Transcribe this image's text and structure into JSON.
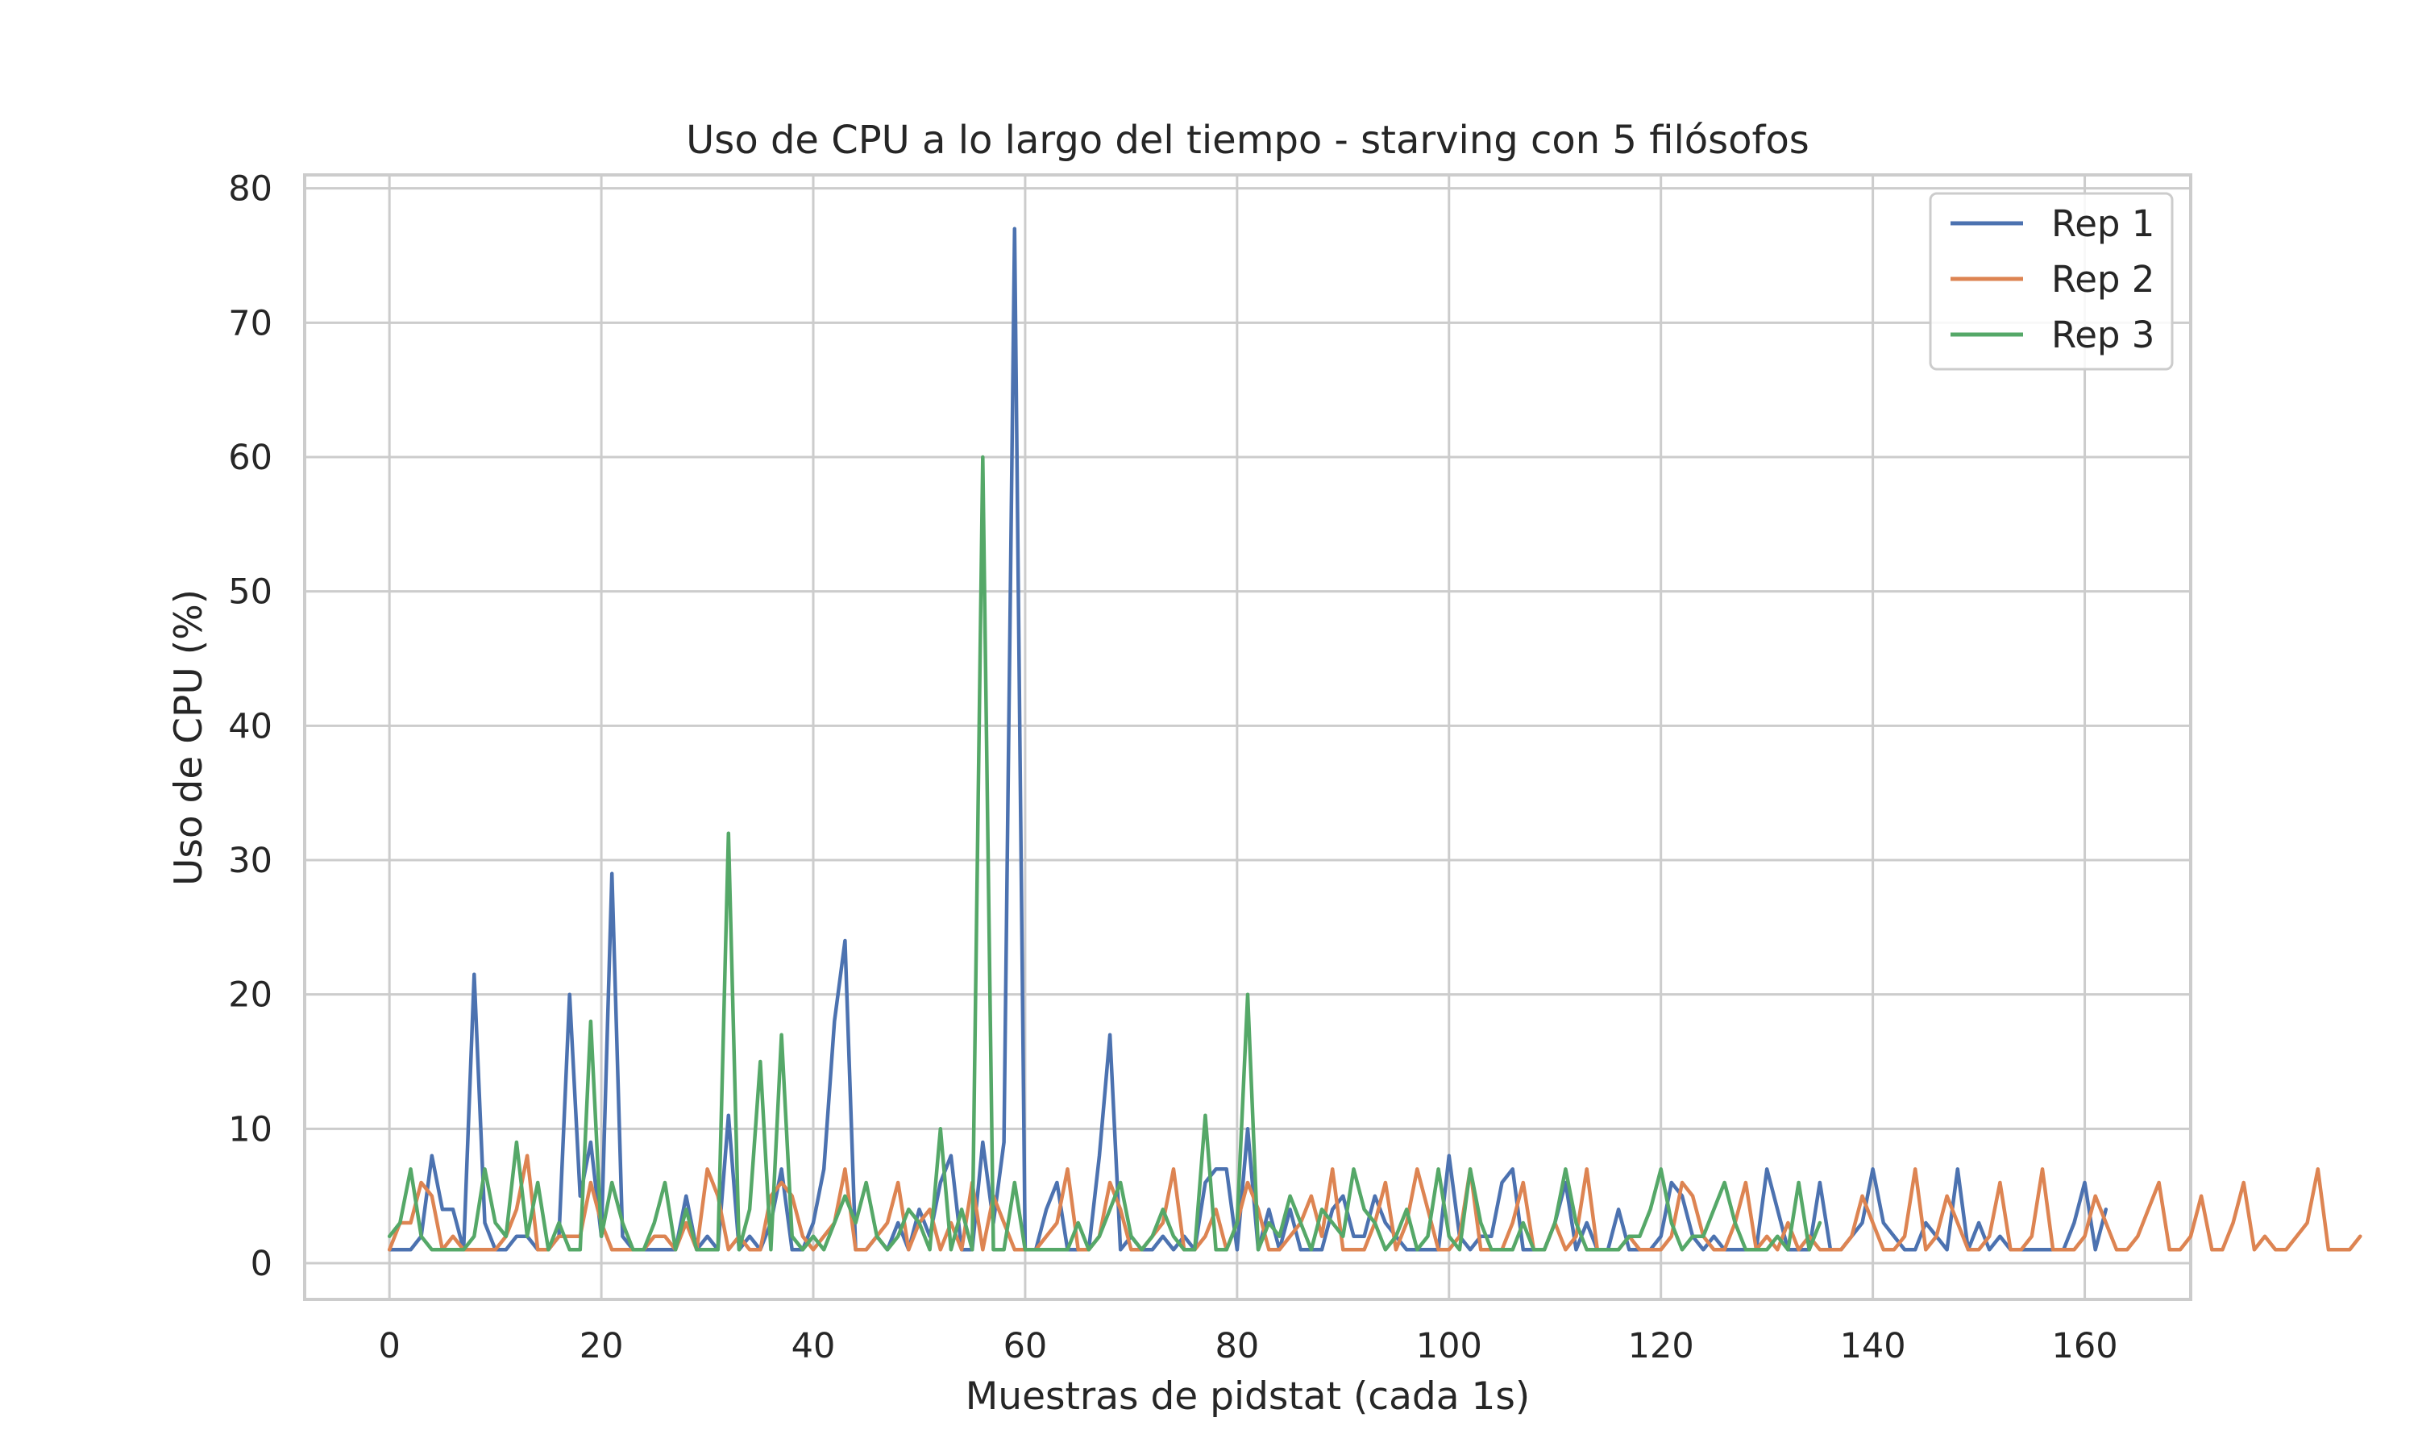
{
  "chart_data": {
    "type": "line",
    "title": "Uso de CPU a lo largo del tiempo - starving con 5 filósofos",
    "xlabel": "Muestras de pidstat (cada 1s)",
    "ylabel": "Uso de CPU (%)",
    "xlim": [
      -8,
      170
    ],
    "ylim": [
      -2.7,
      81
    ],
    "xticks": [
      0,
      20,
      40,
      60,
      80,
      100,
      120,
      140,
      160
    ],
    "yticks": [
      0,
      10,
      20,
      30,
      40,
      50,
      60,
      70,
      80
    ],
    "grid": true,
    "legend_position": "top-right",
    "series": [
      {
        "name": "Rep 1",
        "color": "#4c72b0",
        "values": [
          1,
          1,
          1,
          2,
          8,
          4,
          4,
          1,
          21.5,
          3,
          1,
          1,
          2,
          2,
          1,
          1,
          2,
          20,
          5,
          9,
          2,
          29,
          2,
          1,
          1,
          1,
          1,
          1,
          5,
          1,
          2,
          1,
          11,
          1,
          2,
          1,
          3,
          7,
          1,
          1,
          3,
          7,
          18,
          24,
          1,
          1,
          2,
          1,
          3,
          1,
          4,
          2,
          6,
          8,
          1,
          1,
          9,
          3,
          9,
          77,
          1,
          1,
          4,
          6,
          1,
          1,
          1,
          8,
          17,
          1,
          2,
          1,
          1,
          2,
          1,
          2,
          1,
          6,
          7,
          7,
          1,
          10,
          1,
          4,
          1,
          4,
          1,
          1,
          1,
          4,
          5,
          2,
          2,
          5,
          3,
          2,
          1,
          1,
          1,
          1,
          8,
          2,
          1,
          2,
          2,
          6,
          7,
          1,
          1,
          1,
          3,
          6,
          1,
          3,
          1,
          1,
          4,
          1,
          1,
          1,
          2,
          6,
          5,
          2,
          1,
          2,
          1,
          1,
          1,
          1,
          7,
          4,
          1,
          1,
          1,
          6,
          1,
          1,
          2,
          3,
          7,
          3,
          2,
          1,
          1,
          3,
          2,
          1,
          7,
          1,
          3,
          1,
          2,
          1,
          1,
          1,
          1,
          1,
          1,
          3,
          6,
          1,
          4
        ]
      },
      {
        "name": "Rep 2",
        "color": "#dd8452",
        "values": [
          1,
          3,
          3,
          6,
          5,
          1,
          2,
          1,
          1,
          1,
          1,
          2,
          4,
          8,
          1,
          1,
          2,
          2,
          2,
          6,
          3,
          1,
          1,
          1,
          1,
          2,
          2,
          1,
          3,
          1,
          7,
          5,
          1,
          2,
          1,
          1,
          5,
          6,
          5,
          2,
          1,
          2,
          3,
          7,
          1,
          1,
          2,
          3,
          6,
          1,
          3,
          4,
          1,
          3,
          1,
          6,
          1,
          5,
          3,
          1,
          1,
          1,
          2,
          3,
          7,
          1,
          1,
          2,
          6,
          4,
          1,
          1,
          2,
          3,
          7,
          1,
          1,
          2,
          4,
          1,
          3,
          6,
          4,
          1,
          1,
          2,
          3,
          5,
          2,
          7,
          1,
          1,
          1,
          3,
          6,
          1,
          3,
          7,
          4,
          1,
          1,
          2,
          7,
          1,
          1,
          1,
          3,
          6,
          1,
          1,
          3,
          1,
          2,
          7,
          1,
          1,
          1,
          2,
          1,
          1,
          1,
          2,
          6,
          5,
          2,
          1,
          1,
          3,
          6,
          1,
          2,
          1,
          3,
          1,
          2,
          1,
          1,
          1,
          2,
          5,
          3,
          1,
          1,
          2,
          7,
          1,
          2,
          5,
          3,
          1,
          1,
          2,
          6,
          1,
          1,
          2,
          7,
          1,
          1,
          1,
          2,
          5,
          3,
          1,
          1,
          2,
          4,
          6,
          1,
          1,
          2,
          5,
          1,
          1,
          3,
          6,
          1,
          2,
          1,
          1,
          2,
          3,
          7,
          1,
          1,
          1,
          2
        ]
      },
      {
        "name": "Rep 3",
        "color": "#55a868",
        "values": [
          2,
          3,
          7,
          2,
          1,
          1,
          1,
          1,
          2,
          7,
          3,
          2,
          9,
          2,
          6,
          1,
          3,
          1,
          1,
          18,
          2,
          6,
          3,
          1,
          1,
          3,
          6,
          1,
          4,
          1,
          1,
          1,
          32,
          1,
          4,
          15,
          1,
          17,
          2,
          1,
          2,
          1,
          3,
          5,
          3,
          6,
          2,
          1,
          2,
          4,
          3,
          1,
          10,
          1,
          4,
          1,
          60,
          1,
          1,
          6,
          1,
          1,
          1,
          1,
          1,
          3,
          1,
          2,
          4,
          6,
          2,
          1,
          2,
          4,
          2,
          1,
          1,
          11,
          1,
          1,
          3,
          20,
          1,
          3,
          2,
          5,
          3,
          1,
          4,
          3,
          2,
          7,
          4,
          3,
          1,
          2,
          4,
          1,
          2,
          7,
          2,
          1,
          7,
          3,
          1,
          1,
          1,
          3,
          1,
          1,
          3,
          7,
          3,
          1,
          1,
          1,
          1,
          2,
          2,
          4,
          7,
          3,
          1,
          2,
          2,
          4,
          6,
          3,
          1,
          1,
          1,
          2,
          1,
          6,
          1,
          3
        ]
      }
    ]
  }
}
